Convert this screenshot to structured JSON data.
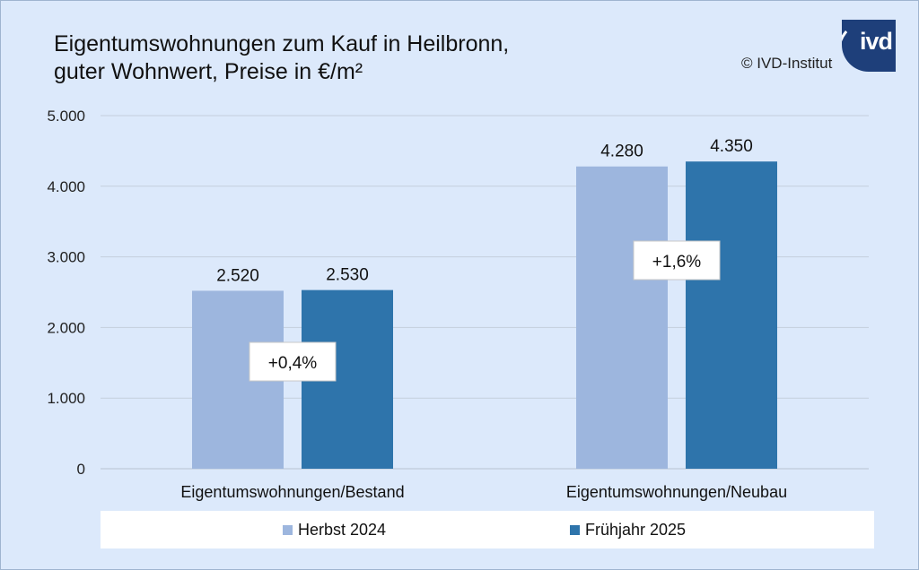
{
  "title_line1": "Eigentumswohnungen zum Kauf in Heilbronn,",
  "title_line2": "guter Wohnwert, Preise in €/m²",
  "copyright": "© IVD-Institut",
  "logo_text": "ivd",
  "colors": {
    "herbst": "#9db6de",
    "fruehjahr": "#2e74ab",
    "background": "#dce9fb",
    "logo": "#1e3f7a"
  },
  "chart_data": {
    "type": "bar",
    "categories": [
      "Eigentumswohnungen/Bestand",
      "Eigentumswohnungen/Neubau"
    ],
    "series": [
      {
        "name": "Herbst 2024",
        "values": [
          2520,
          4280
        ],
        "labels": [
          "2.520",
          "4.280"
        ]
      },
      {
        "name": "Frühjahr 2025",
        "values": [
          2530,
          4350
        ],
        "labels": [
          "2.530",
          "4.350"
        ]
      }
    ],
    "ylim": [
      0,
      5000
    ],
    "yticks": [
      0,
      1000,
      2000,
      3000,
      4000,
      5000
    ],
    "ytick_labels": [
      "0",
      "1.000",
      "2.000",
      "3.000",
      "4.000",
      "5.000"
    ],
    "annotations": [
      "+0,4%",
      "+1,6%"
    ],
    "grid": true,
    "legend_position": "bottom"
  }
}
